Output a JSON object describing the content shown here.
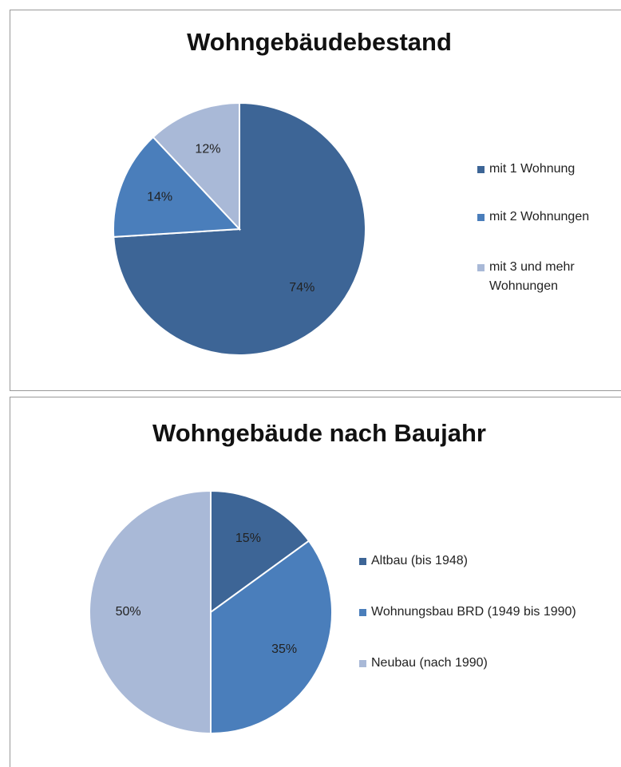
{
  "chart_data": [
    {
      "type": "pie",
      "title": "Wohngebäudebestand",
      "categories": [
        "mit 1 Wohnung",
        "mit 2 Wohnungen",
        "mit 3 und mehr Wohnungen"
      ],
      "values": [
        74,
        14,
        12
      ],
      "value_labels": [
        "74%",
        "14%",
        "12%"
      ],
      "colors": [
        "#3d6596",
        "#4a7ebb",
        "#a9b9d7"
      ],
      "legend": "right"
    },
    {
      "type": "pie",
      "title": "Wohngebäude nach Baujahr",
      "categories": [
        "Altbau (bis 1948)",
        "Wohnungsbau BRD (1949 bis 1990)",
        "Neubau (nach 1990)"
      ],
      "values": [
        15,
        35,
        50
      ],
      "value_labels": [
        "15%",
        "35%",
        "50%"
      ],
      "colors": [
        "#3d6596",
        "#4a7ebb",
        "#a9b9d7"
      ],
      "legend": "right"
    }
  ]
}
